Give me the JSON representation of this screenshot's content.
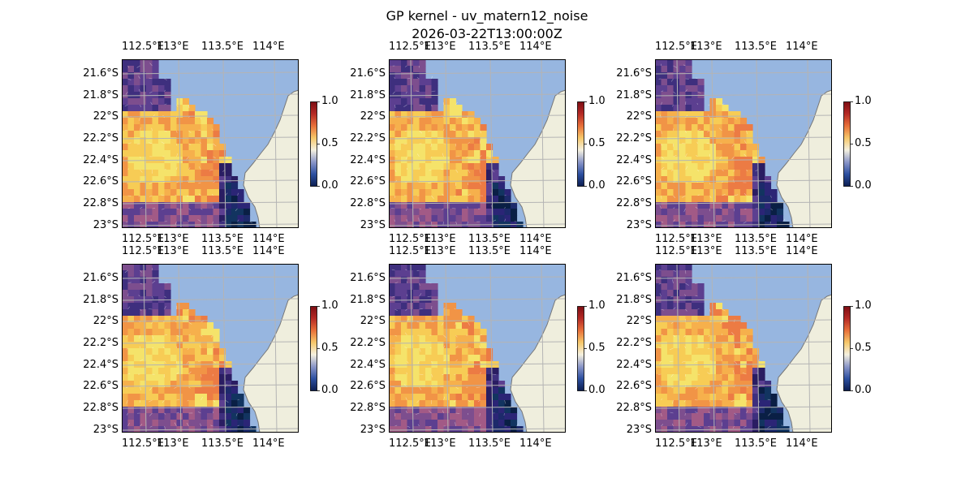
{
  "title": {
    "line1": "GP kernel - uv_matern12_noise",
    "line2": "2026-03-22T13:00:00Z"
  },
  "lon_ticks": [
    "112.5°E",
    "113°E",
    "113.5°E",
    "114°E"
  ],
  "lat_ticks": [
    "21.6°S",
    "21.8°S",
    "22°S",
    "22.2°S",
    "22.4°S",
    "22.6°S",
    "22.8°S",
    "23°S"
  ],
  "colorbar": {
    "ticks": [
      "1.0",
      "0.5",
      "0.0"
    ],
    "range": [
      0.0,
      1.0
    ]
  },
  "colors": {
    "ocean": "#97b6e0",
    "land": "#efeedd",
    "coast": "#777777",
    "grid": "#b4b4b4",
    "cmap": [
      "#0b1d50",
      "#2c4fa0",
      "#8a96c8",
      "#f5f1e0",
      "#f6c86a",
      "#e8703a",
      "#b52a25",
      "#7d0d13"
    ]
  },
  "panels": [
    {
      "id": "panel-1",
      "variant": 0
    },
    {
      "id": "panel-2",
      "variant": 1
    },
    {
      "id": "panel-3",
      "variant": 2
    },
    {
      "id": "panel-4",
      "variant": 3
    },
    {
      "id": "panel-5",
      "variant": 4
    },
    {
      "id": "panel-6",
      "variant": 5
    }
  ]
}
